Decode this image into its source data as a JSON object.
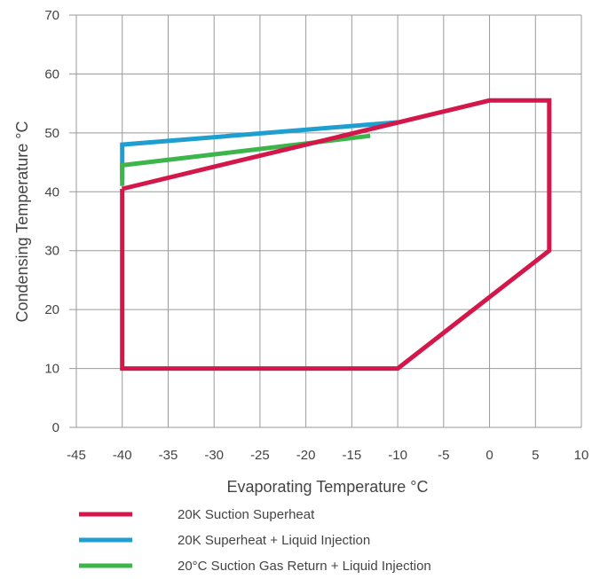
{
  "chart_data": {
    "type": "line",
    "title": "",
    "xlabel": "Evaporating Temperature °C",
    "ylabel": "Condensing Temperature °C",
    "xlim": [
      -45,
      10
    ],
    "ylim": [
      0,
      70
    ],
    "x_ticks": [
      -45,
      -40,
      -35,
      -30,
      -25,
      -20,
      -15,
      -10,
      -5,
      0,
      5,
      10
    ],
    "y_ticks": [
      0,
      10,
      20,
      30,
      40,
      50,
      60,
      70
    ],
    "x_tick_labels": [
      "-45",
      "-40",
      "-35",
      "-30",
      "-25",
      "-20",
      "-15",
      "-10",
      "-5",
      "0",
      "5",
      "10"
    ],
    "y_tick_labels": [
      "0",
      "10",
      "20",
      "30",
      "40",
      "50",
      "60",
      "70"
    ],
    "grid": true,
    "legend_position": "bottom-left",
    "series": [
      {
        "name": "20K Superheat + Liquid Injection",
        "color": "#1f9fd0",
        "points": [
          [
            -40,
            42
          ],
          [
            -40,
            48
          ],
          [
            -10,
            51.8
          ]
        ]
      },
      {
        "name": "20°C Suction Gas Return + Liquid Injection",
        "color": "#3cb54a",
        "points": [
          [
            -40,
            41
          ],
          [
            -40,
            44.5
          ],
          [
            -13,
            49.5
          ]
        ]
      },
      {
        "name": "20K Suction Superheat",
        "color": "#d4174b",
        "points": [
          [
            -40,
            40.5
          ],
          [
            0,
            55.5
          ],
          [
            6.5,
            55.5
          ],
          [
            6.5,
            30
          ],
          [
            -10,
            10
          ],
          [
            -11.5,
            10
          ],
          [
            -40,
            10
          ],
          [
            -40,
            40.5
          ]
        ]
      }
    ],
    "legend_order": [
      "20K Suction Superheat",
      "20K Superheat + Liquid Injection",
      "20°C Suction Gas Return + Liquid Injection"
    ]
  }
}
